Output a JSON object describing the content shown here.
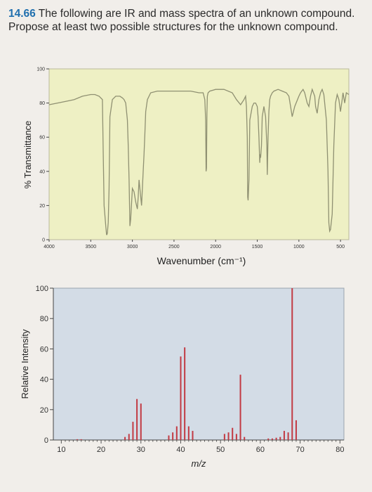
{
  "problem": {
    "number": "14.66",
    "text": "The following are IR and mass spectra of an unknown compound. Propose at least two possible structures for the unknown compound."
  },
  "colors": {
    "ir_background": "#eef0c4",
    "ir_trace": "#8f9072",
    "ms_background": "#d3dce6",
    "ms_bar": "#c23a43",
    "problem_number": "#1f6fae"
  },
  "chart_data": [
    {
      "type": "line",
      "title": "",
      "xlabel": "Wavenumber (cm⁻¹)",
      "ylabel": "% Transmittance",
      "xlim": [
        4000,
        400
      ],
      "ylim": [
        0,
        100
      ],
      "x_ticks": [
        4000,
        3500,
        3000,
        2500,
        2000,
        1500,
        1000,
        500
      ],
      "y_ticks": [
        0,
        20,
        40,
        60,
        80,
        100
      ],
      "grid": false,
      "series": [
        {
          "x": [
            4000,
            3900,
            3800,
            3700,
            3600,
            3500,
            3450,
            3400,
            3360,
            3350,
            3340,
            3320,
            3310,
            3305,
            3300,
            3290,
            3280,
            3270,
            3240,
            3200,
            3150,
            3120,
            3100,
            3080,
            3060,
            3050,
            3040,
            3030,
            3020,
            3000,
            2980,
            2960,
            2940,
            2930,
            2920,
            2910,
            2890,
            2870,
            2860,
            2850,
            2840,
            2820,
            2780,
            2700,
            2600,
            2500,
            2400,
            2300,
            2200,
            2150,
            2130,
            2120,
            2115,
            2110,
            2105,
            2100,
            2090,
            2070,
            2000,
            1900,
            1800,
            1750,
            1700,
            1660,
            1640,
            1630,
            1620,
            1615,
            1610,
            1600,
            1590,
            1560,
            1540,
            1520,
            1500,
            1490,
            1480,
            1470,
            1465,
            1460,
            1450,
            1440,
            1420,
            1400,
            1385,
            1380,
            1370,
            1360,
            1350,
            1340,
            1320,
            1300,
            1250,
            1200,
            1150,
            1120,
            1100,
            1080,
            1050,
            1000,
            980,
            950,
            930,
            900,
            880,
            860,
            840,
            810,
            800,
            780,
            760,
            740,
            720,
            700,
            670,
            650,
            640,
            630,
            620,
            600,
            580,
            560,
            540,
            520,
            500,
            480,
            470,
            450,
            430,
            400
          ],
          "y": [
            79,
            80,
            81,
            82,
            84,
            85,
            85,
            84,
            82,
            50,
            20,
            8,
            3,
            3,
            4,
            10,
            30,
            72,
            82,
            84,
            84,
            83,
            82,
            80,
            70,
            55,
            35,
            8,
            12,
            30,
            28,
            22,
            18,
            25,
            35,
            30,
            20,
            40,
            50,
            62,
            75,
            82,
            86,
            87,
            87,
            87,
            87,
            87,
            86,
            86,
            82,
            70,
            40,
            42,
            74,
            84,
            86,
            87,
            88,
            88,
            86,
            82,
            79,
            82,
            84,
            78,
            60,
            25,
            23,
            35,
            70,
            78,
            80,
            80,
            78,
            72,
            60,
            45,
            50,
            48,
            55,
            72,
            78,
            72,
            55,
            38,
            60,
            75,
            82,
            84,
            86,
            87,
            88,
            87,
            86,
            84,
            78,
            72,
            78,
            84,
            86,
            88,
            86,
            80,
            78,
            84,
            88,
            84,
            78,
            74,
            82,
            86,
            88,
            85,
            70,
            40,
            10,
            5,
            6,
            15,
            55,
            80,
            85,
            82,
            75,
            82,
            86,
            80,
            86,
            85
          ]
        }
      ]
    },
    {
      "type": "bar",
      "title": "",
      "xlabel": "m/z",
      "ylabel": "Relative Intensity",
      "xlim": [
        8,
        81
      ],
      "ylim": [
        0,
        100
      ],
      "x_ticks": [
        10,
        20,
        30,
        40,
        50,
        60,
        70,
        80
      ],
      "y_ticks": [
        0,
        20,
        40,
        60,
        80,
        100
      ],
      "grid": false,
      "x": [
        14,
        15,
        26,
        27,
        28,
        29,
        30,
        37,
        38,
        39,
        40,
        41,
        42,
        43,
        51,
        52,
        53,
        54,
        55,
        56,
        62,
        63,
        64,
        65,
        66,
        67,
        68,
        69
      ],
      "values": [
        0.5,
        0.5,
        2,
        4,
        12,
        27,
        24,
        3,
        5,
        9,
        55,
        61,
        9,
        6,
        4,
        5,
        8,
        4,
        43,
        2,
        1,
        1,
        1.5,
        2,
        6,
        5,
        100,
        13
      ]
    }
  ]
}
